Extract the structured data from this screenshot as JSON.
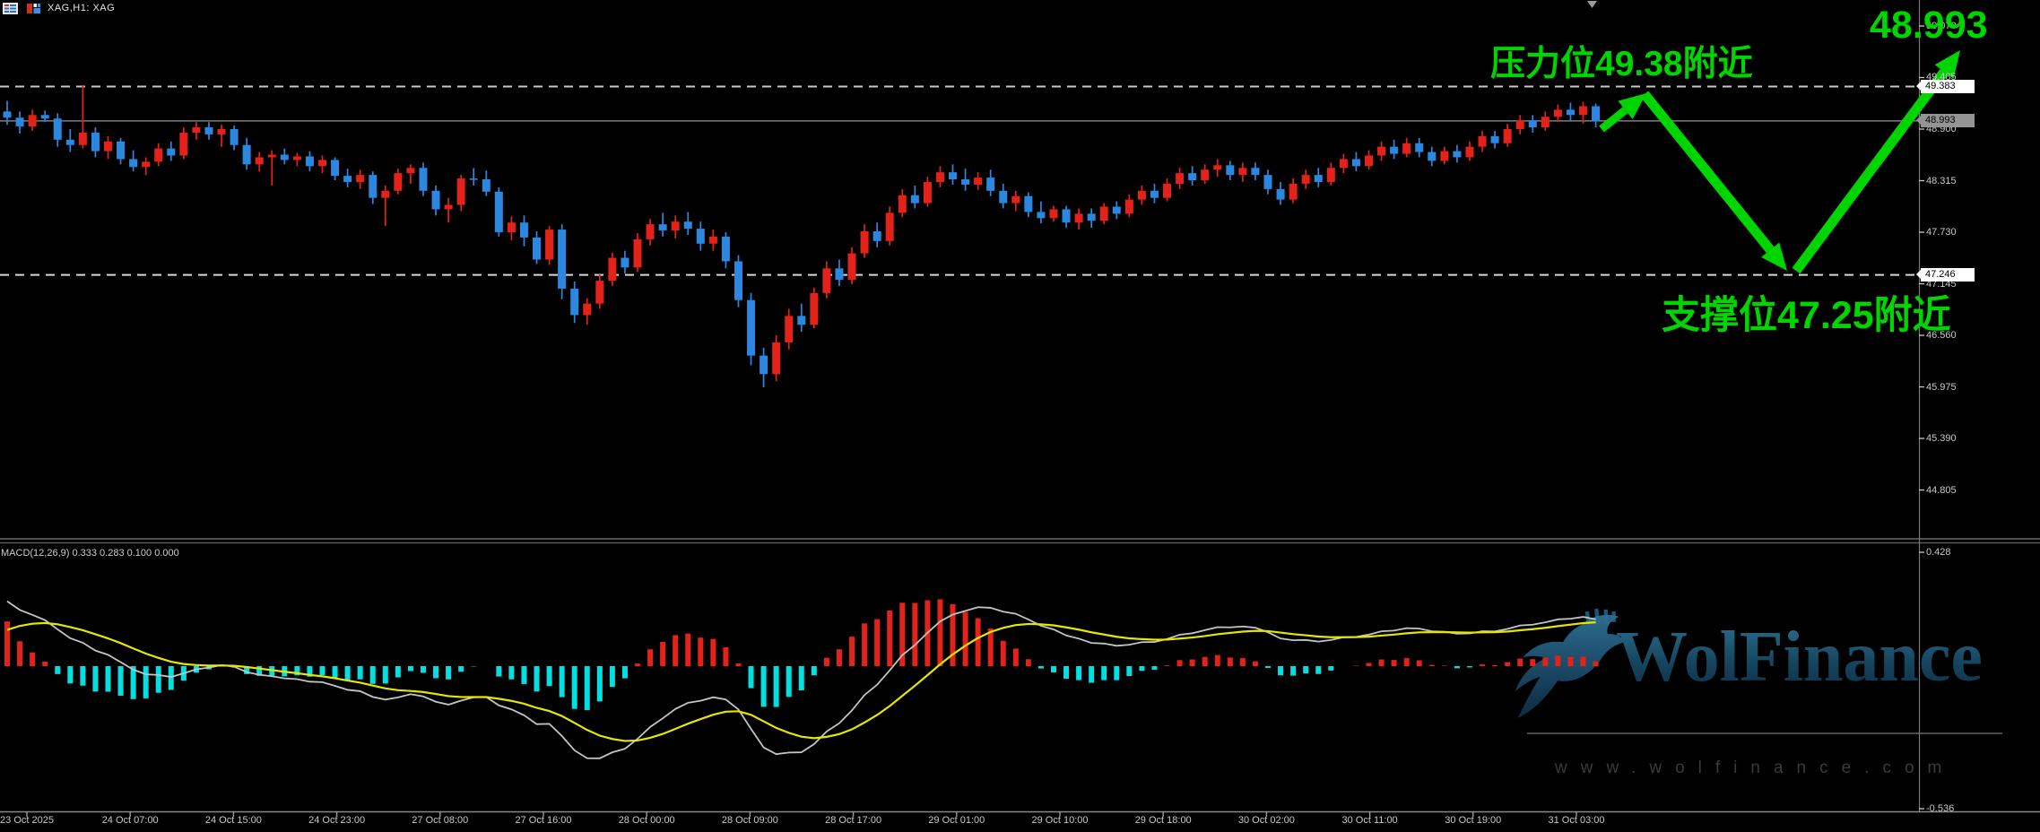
{
  "window": {
    "symbol_label": "XAG,H1: XAG"
  },
  "macd_panel": {
    "label": "MACD(12,26,9) 0.333 0.283 0.100 0.000",
    "upper_tick": "0.428",
    "lower_tick": "-0.536"
  },
  "price_axis": {
    "ticks": [
      {
        "text": "50.070",
        "price": 50.07
      },
      {
        "text": "49.485",
        "price": 49.485
      },
      {
        "text": "48.900",
        "price": 48.9
      },
      {
        "text": "48.315",
        "price": 48.315
      },
      {
        "text": "47.730",
        "price": 47.73
      },
      {
        "text": "47.145",
        "price": 47.145
      },
      {
        "text": "46.560",
        "price": 46.56
      },
      {
        "text": "45.975",
        "price": 45.975
      },
      {
        "text": "45.390",
        "price": 45.39
      },
      {
        "text": "44.805",
        "price": 44.805
      }
    ],
    "tags": [
      {
        "text": "49.383",
        "price": 49.383,
        "bg": "#ffffff"
      },
      {
        "text": "48.993",
        "price": 48.993,
        "bg": "#949494"
      },
      {
        "text": "47.246",
        "price": 47.246,
        "bg": "#ffffff"
      }
    ]
  },
  "time_axis": {
    "labels": [
      "23 Oct 2025",
      "24 Oct 07:00",
      "24 Oct 15:00",
      "24 Oct 23:00",
      "27 Oct 08:00",
      "27 Oct 16:00",
      "28 Oct 00:00",
      "28 Oct 09:00",
      "28 Oct 17:00",
      "29 Oct 01:00",
      "29 Oct 10:00",
      "29 Oct 18:00",
      "30 Oct 02:00",
      "30 Oct 11:00",
      "30 Oct 19:00",
      "31 Oct 03:00"
    ]
  },
  "annotations": {
    "pressure_text": "压力位49.38附近",
    "support_text": "支撑位47.25附近",
    "price_callout": "48.993",
    "color": "#00d500"
  },
  "watermark": {
    "brand": "WolFinance",
    "url_text": "www.wolfinance.com"
  },
  "chart_data": {
    "type": "candlestick",
    "title": "XAG H1",
    "symbol": "XAG",
    "timeframe": "H1",
    "up_color": "#e32219",
    "down_color": "#2b87e0",
    "levels": {
      "resistance": 49.383,
      "support": 47.246,
      "last_price": 48.993
    },
    "y_ticks": [
      50.07,
      49.485,
      48.9,
      48.315,
      47.73,
      47.145,
      46.56,
      45.975,
      45.39,
      44.805
    ],
    "x_time_labels": [
      "23 Oct 2025",
      "24 Oct 07:00",
      "24 Oct 15:00",
      "24 Oct 23:00",
      "27 Oct 08:00",
      "27 Oct 16:00",
      "28 Oct 00:00",
      "28 Oct 09:00",
      "28 Oct 17:00",
      "29 Oct 01:00",
      "29 Oct 10:00",
      "29 Oct 18:00",
      "30 Oct 02:00",
      "30 Oct 11:00",
      "30 Oct 19:00",
      "31 Oct 03:00"
    ],
    "ohlc": [
      [
        49.1,
        49.22,
        48.95,
        49.03
      ],
      [
        49.03,
        49.1,
        48.85,
        48.93
      ],
      [
        48.93,
        49.12,
        48.88,
        49.06
      ],
      [
        49.06,
        49.11,
        48.98,
        49.02
      ],
      [
        49.02,
        49.08,
        48.7,
        48.78
      ],
      [
        48.78,
        48.9,
        48.64,
        48.72
      ],
      [
        48.72,
        49.4,
        48.68,
        48.86
      ],
      [
        48.86,
        48.92,
        48.58,
        48.65
      ],
      [
        48.65,
        48.82,
        48.56,
        48.76
      ],
      [
        48.76,
        48.8,
        48.5,
        48.56
      ],
      [
        48.56,
        48.66,
        48.42,
        48.47
      ],
      [
        48.47,
        48.58,
        48.38,
        48.53
      ],
      [
        48.53,
        48.74,
        48.48,
        48.68
      ],
      [
        48.68,
        48.76,
        48.54,
        48.6
      ],
      [
        48.6,
        48.92,
        48.56,
        48.86
      ],
      [
        48.86,
        48.98,
        48.78,
        48.92
      ],
      [
        48.92,
        48.98,
        48.78,
        48.84
      ],
      [
        48.84,
        48.95,
        48.7,
        48.9
      ],
      [
        48.9,
        48.94,
        48.66,
        48.72
      ],
      [
        48.72,
        48.8,
        48.44,
        48.5
      ],
      [
        48.5,
        48.64,
        48.42,
        48.58
      ],
      [
        48.58,
        48.66,
        48.26,
        48.61
      ],
      [
        48.61,
        48.68,
        48.5,
        48.55
      ],
      [
        48.55,
        48.63,
        48.48,
        48.59
      ],
      [
        48.59,
        48.65,
        48.42,
        48.48
      ],
      [
        48.48,
        48.6,
        48.4,
        48.55
      ],
      [
        48.55,
        48.58,
        48.32,
        48.37
      ],
      [
        48.37,
        48.45,
        48.24,
        48.3
      ],
      [
        48.3,
        48.44,
        48.22,
        48.38
      ],
      [
        48.38,
        48.42,
        48.05,
        48.12
      ],
      [
        48.12,
        48.26,
        47.8,
        48.2
      ],
      [
        48.2,
        48.45,
        48.16,
        48.4
      ],
      [
        48.4,
        48.5,
        48.28,
        48.46
      ],
      [
        48.46,
        48.52,
        48.14,
        48.2
      ],
      [
        48.2,
        48.26,
        47.92,
        47.99
      ],
      [
        47.99,
        48.12,
        47.84,
        48.04
      ],
      [
        48.04,
        48.38,
        47.97,
        48.34
      ],
      [
        48.34,
        48.46,
        48.26,
        48.33
      ],
      [
        48.33,
        48.43,
        48.14,
        48.19
      ],
      [
        48.19,
        48.24,
        47.68,
        47.73
      ],
      [
        47.73,
        47.91,
        47.64,
        47.84
      ],
      [
        47.84,
        47.92,
        47.57,
        47.67
      ],
      [
        47.67,
        47.74,
        47.37,
        47.42
      ],
      [
        47.42,
        47.8,
        47.36,
        47.76
      ],
      [
        47.76,
        47.82,
        46.97,
        47.09
      ],
      [
        47.09,
        47.17,
        46.7,
        46.79
      ],
      [
        46.79,
        46.98,
        46.68,
        46.92
      ],
      [
        46.92,
        47.25,
        46.86,
        47.18
      ],
      [
        47.18,
        47.5,
        47.12,
        47.44
      ],
      [
        47.44,
        47.52,
        47.26,
        47.33
      ],
      [
        47.33,
        47.72,
        47.28,
        47.65
      ],
      [
        47.65,
        47.88,
        47.58,
        47.82
      ],
      [
        47.82,
        47.95,
        47.68,
        47.75
      ],
      [
        47.75,
        47.92,
        47.66,
        47.85
      ],
      [
        47.85,
        47.96,
        47.7,
        47.77
      ],
      [
        47.77,
        47.85,
        47.52,
        47.6
      ],
      [
        47.6,
        47.76,
        47.52,
        47.68
      ],
      [
        47.68,
        47.73,
        47.32,
        47.4
      ],
      [
        47.4,
        47.47,
        46.88,
        46.96
      ],
      [
        46.96,
        47.04,
        46.22,
        46.33
      ],
      [
        46.33,
        46.42,
        45.97,
        46.12
      ],
      [
        46.12,
        46.56,
        46.04,
        46.48
      ],
      [
        46.48,
        46.86,
        46.4,
        46.78
      ],
      [
        46.78,
        46.92,
        46.6,
        46.68
      ],
      [
        46.68,
        47.1,
        46.64,
        47.04
      ],
      [
        47.04,
        47.4,
        46.98,
        47.32
      ],
      [
        47.32,
        47.42,
        47.12,
        47.19
      ],
      [
        47.19,
        47.56,
        47.14,
        47.49
      ],
      [
        47.49,
        47.82,
        47.44,
        47.74
      ],
      [
        47.74,
        47.84,
        47.56,
        47.63
      ],
      [
        47.63,
        48.02,
        47.58,
        47.95
      ],
      [
        47.95,
        48.22,
        47.9,
        48.15
      ],
      [
        48.15,
        48.26,
        48.0,
        48.06
      ],
      [
        48.06,
        48.36,
        48.02,
        48.3
      ],
      [
        48.3,
        48.48,
        48.24,
        48.41
      ],
      [
        48.41,
        48.5,
        48.27,
        48.33
      ],
      [
        48.33,
        48.45,
        48.2,
        48.27
      ],
      [
        48.27,
        48.41,
        48.21,
        48.35
      ],
      [
        48.35,
        48.44,
        48.14,
        48.2
      ],
      [
        48.2,
        48.28,
        48.0,
        48.06
      ],
      [
        48.06,
        48.2,
        47.97,
        48.14
      ],
      [
        48.14,
        48.18,
        47.9,
        47.96
      ],
      [
        47.96,
        48.08,
        47.83,
        47.89
      ],
      [
        47.89,
        48.03,
        47.85,
        47.99
      ],
      [
        47.99,
        48.03,
        47.78,
        47.84
      ],
      [
        47.84,
        48.0,
        47.76,
        47.94
      ],
      [
        47.94,
        48.0,
        47.78,
        47.86
      ],
      [
        47.86,
        48.06,
        47.82,
        48.02
      ],
      [
        48.02,
        48.08,
        47.88,
        47.94
      ],
      [
        47.94,
        48.16,
        47.9,
        48.1
      ],
      [
        48.1,
        48.26,
        48.04,
        48.2
      ],
      [
        48.2,
        48.28,
        48.06,
        48.12
      ],
      [
        48.12,
        48.34,
        48.08,
        48.28
      ],
      [
        48.28,
        48.46,
        48.22,
        48.4
      ],
      [
        48.4,
        48.48,
        48.26,
        48.32
      ],
      [
        48.32,
        48.5,
        48.28,
        48.44
      ],
      [
        48.44,
        48.56,
        48.36,
        48.49
      ],
      [
        48.49,
        48.54,
        48.32,
        48.38
      ],
      [
        48.38,
        48.52,
        48.3,
        48.46
      ],
      [
        48.46,
        48.52,
        48.32,
        48.38
      ],
      [
        48.38,
        48.44,
        48.16,
        48.22
      ],
      [
        48.22,
        48.3,
        48.04,
        48.1
      ],
      [
        48.1,
        48.34,
        48.06,
        48.28
      ],
      [
        48.28,
        48.44,
        48.22,
        48.38
      ],
      [
        48.38,
        48.46,
        48.24,
        48.3
      ],
      [
        48.3,
        48.52,
        48.26,
        48.46
      ],
      [
        48.46,
        48.62,
        48.4,
        48.56
      ],
      [
        48.56,
        48.64,
        48.42,
        48.48
      ],
      [
        48.48,
        48.66,
        48.44,
        48.6
      ],
      [
        48.6,
        48.76,
        48.54,
        48.7
      ],
      [
        48.7,
        48.78,
        48.56,
        48.62
      ],
      [
        48.62,
        48.8,
        48.58,
        48.74
      ],
      [
        48.74,
        48.8,
        48.58,
        48.64
      ],
      [
        48.64,
        48.7,
        48.48,
        48.54
      ],
      [
        48.54,
        48.7,
        48.5,
        48.65
      ],
      [
        48.65,
        48.72,
        48.52,
        48.58
      ],
      [
        48.58,
        48.76,
        48.54,
        48.7
      ],
      [
        48.7,
        48.88,
        48.64,
        48.82
      ],
      [
        48.82,
        48.88,
        48.68,
        48.74
      ],
      [
        48.74,
        48.96,
        48.7,
        48.9
      ],
      [
        48.9,
        49.06,
        48.84,
        49.0
      ],
      [
        49.0,
        49.06,
        48.86,
        48.92
      ],
      [
        48.92,
        49.1,
        48.88,
        49.04
      ],
      [
        49.04,
        49.18,
        48.98,
        49.12
      ],
      [
        49.12,
        49.2,
        49.0,
        49.06
      ],
      [
        49.06,
        49.21,
        48.96,
        49.16
      ],
      [
        49.16,
        49.19,
        48.92,
        48.99
      ]
    ],
    "indicator": {
      "name": "MACD",
      "params": [
        12,
        26,
        9
      ],
      "display_values": [
        0.333,
        0.283,
        0.1,
        0.0
      ],
      "y_ticks": [
        0.428,
        -0.536
      ],
      "hist_up": "#e32219",
      "hist_down": "#00e0e0",
      "macd_line": "#c4c4c4",
      "signal_line": "#e6e600"
    }
  }
}
